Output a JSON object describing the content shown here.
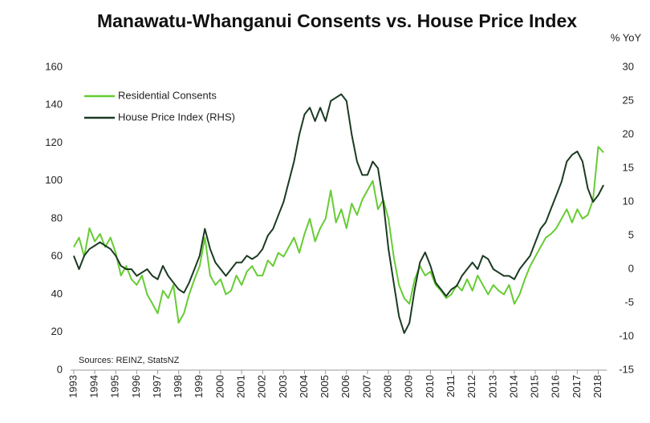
{
  "chart_data": {
    "type": "line",
    "title": "Manawatu-Whanganui Consents vs. House Price Index",
    "y2_label": "% YoY",
    "annotation": "Sources:  REINZ, StatsNZ",
    "x": [
      1993,
      1993.25,
      1993.5,
      1993.75,
      1994,
      1994.25,
      1994.5,
      1994.75,
      1995,
      1995.25,
      1995.5,
      1995.75,
      1996,
      1996.25,
      1996.5,
      1996.75,
      1997,
      1997.25,
      1997.5,
      1997.75,
      1998,
      1998.25,
      1998.5,
      1998.75,
      1999,
      1999.25,
      1999.5,
      1999.75,
      2000,
      2000.25,
      2000.5,
      2000.75,
      2001,
      2001.25,
      2001.5,
      2001.75,
      2002,
      2002.25,
      2002.5,
      2002.75,
      2003,
      2003.25,
      2003.5,
      2003.75,
      2004,
      2004.25,
      2004.5,
      2004.75,
      2005,
      2005.25,
      2005.5,
      2005.75,
      2006,
      2006.25,
      2006.5,
      2006.75,
      2007,
      2007.25,
      2007.5,
      2007.75,
      2008,
      2008.25,
      2008.5,
      2008.75,
      2009,
      2009.25,
      2009.5,
      2009.75,
      2010,
      2010.25,
      2010.5,
      2010.75,
      2011,
      2011.25,
      2011.5,
      2011.75,
      2012,
      2012.25,
      2012.5,
      2012.75,
      2013,
      2013.25,
      2013.5,
      2013.75,
      2014,
      2014.25,
      2014.5,
      2014.75,
      2015,
      2015.25,
      2015.5,
      2015.75,
      2016,
      2016.25,
      2016.5,
      2016.75,
      2017,
      2017.25,
      2017.5,
      2017.75,
      2018,
      2018.25
    ],
    "series": [
      {
        "name": "Residential Consents",
        "color": "#66cc33",
        "values": [
          65,
          70,
          60,
          75,
          68,
          72,
          65,
          70,
          62,
          50,
          55,
          48,
          45,
          50,
          40,
          35,
          30,
          42,
          38,
          45,
          25,
          30,
          40,
          48,
          55,
          70,
          50,
          45,
          48,
          40,
          42,
          50,
          45,
          52,
          55,
          50,
          50,
          58,
          55,
          62,
          60,
          65,
          70,
          62,
          72,
          80,
          68,
          75,
          80,
          95,
          78,
          85,
          75,
          88,
          82,
          90,
          95,
          100,
          85,
          90,
          80,
          60,
          45,
          38,
          35,
          48,
          55,
          50,
          52,
          45,
          42,
          38,
          40,
          45,
          42,
          48,
          42,
          50,
          45,
          40,
          45,
          42,
          40,
          45,
          35,
          40,
          48,
          55,
          60,
          65,
          70,
          72,
          75,
          80,
          85,
          78,
          85,
          80,
          82,
          90,
          118,
          115
        ]
      },
      {
        "name": "House Price Index (RHS)",
        "color": "#1b3a22",
        "axis": "y2",
        "values": [
          2,
          0,
          2,
          3,
          3.5,
          4,
          3.5,
          3,
          2,
          0.5,
          0,
          0,
          -1,
          -0.5,
          0,
          -1,
          -1.5,
          0.5,
          -1,
          -2,
          -3,
          -3.5,
          -2,
          0,
          2,
          6,
          3,
          1,
          0,
          -1,
          0,
          1,
          1,
          2,
          1.5,
          2,
          3,
          5,
          6,
          8,
          10,
          13,
          16,
          20,
          23,
          24,
          22,
          24,
          22,
          25,
          25.5,
          26,
          25,
          20,
          16,
          14,
          14,
          16,
          15,
          10,
          3,
          -2,
          -7,
          -9.5,
          -8,
          -3,
          1,
          2.5,
          0.5,
          -2,
          -3,
          -4,
          -3,
          -2.5,
          -1,
          0,
          1,
          0,
          2,
          1.5,
          0,
          -0.5,
          -1,
          -1,
          -1.5,
          0,
          1,
          2,
          4,
          6,
          7,
          9,
          11,
          13,
          16,
          17,
          17.5,
          16,
          12,
          10,
          11,
          12.5
        ]
      }
    ],
    "xlim": [
      1992.85,
      2018.4
    ],
    "xticks": [
      1993,
      1994,
      1995,
      1996,
      1997,
      1998,
      1999,
      2000,
      2001,
      2002,
      2003,
      2004,
      2005,
      2006,
      2007,
      2008,
      2009,
      2010,
      2011,
      2012,
      2013,
      2014,
      2015,
      2016,
      2017,
      2018
    ],
    "ylim": [
      0,
      160
    ],
    "yticks": [
      0,
      20,
      40,
      60,
      80,
      100,
      120,
      140,
      160
    ],
    "y2lim": [
      -15,
      30
    ],
    "y2ticks": [
      -15,
      -10,
      -5,
      0,
      5,
      10,
      15,
      20,
      25,
      30
    ],
    "legend": "upper left",
    "grid": false
  }
}
